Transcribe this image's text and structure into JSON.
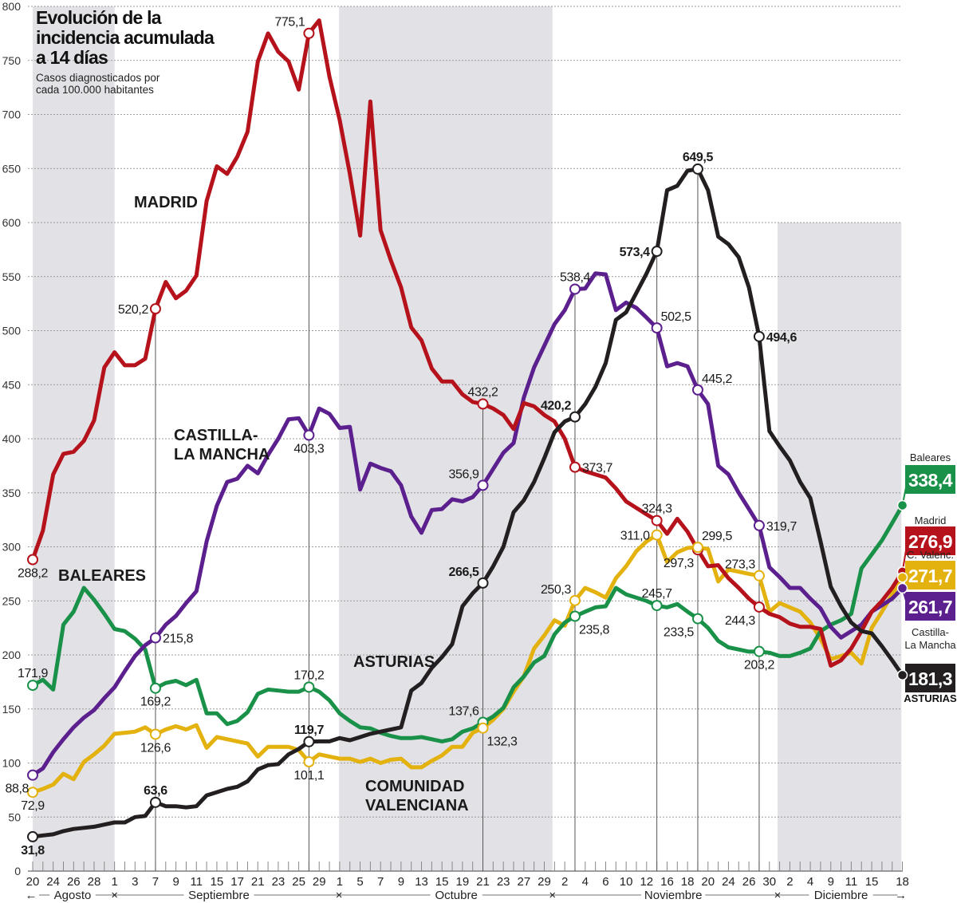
{
  "chart_data": {
    "type": "line",
    "title": [
      "Evolución de la",
      "incidencia acumulada",
      "a 14 días"
    ],
    "subtitle": [
      "Casos diagnosticados por",
      "cada 100.000 habitantes"
    ],
    "xlabel": "",
    "ylabel": "",
    "ylim": [
      0,
      800
    ],
    "yticks": [
      0,
      50,
      100,
      150,
      200,
      250,
      300,
      350,
      400,
      450,
      500,
      550,
      600,
      650,
      700,
      750,
      800
    ],
    "grid": true,
    "x_tick_labels": [
      "20",
      "24",
      "26",
      "28",
      "1",
      "3",
      "7",
      "9",
      "11",
      "15",
      "17",
      "21",
      "23",
      "25",
      "29",
      "1",
      "5",
      "7",
      "9",
      "13",
      "15",
      "19",
      "21",
      "23",
      "27",
      "29",
      "2",
      "4",
      "6",
      "10",
      "12",
      "16",
      "18",
      "20",
      "24",
      "26",
      "30",
      "2",
      "4",
      "9",
      "11",
      "15",
      "18"
    ],
    "months": [
      "Agosto",
      "Septiembre",
      "Octubre",
      "Noviembre",
      "Diciembre"
    ],
    "month_separator": "×",
    "arrow_left": "←",
    "arrow_right": "→",
    "shaded_months": [
      "Agosto",
      "Octubre",
      "Diciembre"
    ],
    "series": [
      {
        "key": "madrid",
        "name": "MADRID",
        "color": "#b5121b",
        "values": [
          288.2,
          315,
          367,
          386,
          388,
          398,
          417,
          466,
          480,
          468,
          468,
          474,
          520.2,
          545,
          530,
          537,
          551,
          620,
          652,
          645,
          661,
          684,
          749,
          775,
          758,
          749,
          723,
          775.1,
          787,
          735,
          695,
          645,
          588,
          712,
          593,
          565,
          540,
          503,
          491,
          465,
          453,
          453,
          441,
          434,
          432.2,
          428,
          422,
          409,
          433,
          430,
          422,
          416,
          400,
          373.7,
          370,
          367,
          364,
          354,
          342,
          336,
          330,
          324.3,
          312,
          326,
          314,
          297.3,
          282,
          283,
          271,
          262,
          252,
          244.3,
          238,
          235,
          229,
          226,
          226,
          224,
          190,
          195,
          206,
          222,
          240,
          250,
          262,
          276.9
        ]
      },
      {
        "key": "clm",
        "name": "CASTILLA-LA MANCHA",
        "color": "#5b1f8e",
        "values": [
          88.8,
          95,
          110,
          122,
          133,
          142,
          149,
          160,
          170,
          185,
          199,
          209,
          215.8,
          228,
          236,
          248,
          259,
          305,
          338,
          360,
          363,
          375,
          368,
          385,
          400,
          418,
          419,
          403.3,
          428,
          423,
          410,
          411,
          353,
          377,
          373,
          370,
          357,
          328,
          313,
          334,
          335,
          344,
          342,
          346,
          356.9,
          372,
          387,
          396,
          438,
          466,
          486,
          506,
          519,
          538.4,
          539,
          553,
          552,
          519,
          526,
          521,
          512,
          502.5,
          467,
          470,
          467,
          445.2,
          432,
          375,
          367,
          350,
          335,
          319.7,
          281,
          272,
          262,
          262,
          252,
          243,
          226,
          216,
          222,
          228,
          240,
          246,
          252,
          261.7
        ]
      },
      {
        "key": "asturias",
        "name": "ASTURIAS",
        "color": "#231f20",
        "values": [
          31.8,
          33,
          34,
          37,
          39,
          40,
          41,
          43,
          45,
          45,
          50,
          51,
          63.6,
          60,
          60,
          59,
          60,
          70,
          73,
          76,
          78,
          83,
          94,
          98,
          99,
          108,
          113,
          119.7,
          120,
          120,
          123,
          121,
          124,
          127,
          129,
          131,
          133,
          167,
          174,
          188,
          198,
          210,
          245,
          257,
          266.5,
          282,
          300,
          332,
          343,
          360,
          382,
          406,
          416,
          420.2,
          432,
          448,
          470,
          510,
          517,
          535,
          553,
          573.4,
          630,
          634,
          648,
          649.5,
          630,
          587,
          580,
          568,
          540,
          494.6,
          407,
          393,
          380,
          360,
          345,
          305,
          263,
          245,
          230,
          222,
          220,
          208,
          195,
          181.3
        ]
      },
      {
        "key": "baleares",
        "name": "BALEARES",
        "color": "#1a9148",
        "values": [
          171.9,
          177,
          168,
          228,
          240,
          262,
          251,
          238,
          224,
          222,
          215,
          205,
          169.2,
          174,
          176,
          172,
          177,
          146,
          146,
          136,
          139,
          147,
          164,
          168,
          167,
          166,
          166,
          170.2,
          166,
          158,
          146,
          139,
          133,
          132,
          128,
          125,
          123,
          123,
          124,
          122,
          120,
          122,
          129,
          132,
          137.6,
          143,
          151,
          170,
          180,
          193,
          199,
          219,
          230,
          235.8,
          240,
          244,
          245,
          262,
          256,
          253,
          250,
          245.7,
          244,
          247,
          240,
          233.5,
          225,
          213,
          207,
          205,
          203,
          203.2,
          202,
          199,
          199,
          202,
          206,
          222,
          228,
          232,
          238,
          280,
          293,
          306,
          322,
          338.4
        ]
      },
      {
        "key": "valenciana",
        "name": "COMUNIDAD VALENCIANA",
        "color": "#e3b20f",
        "values": [
          72.9,
          76,
          80,
          90,
          85,
          101,
          108,
          116,
          127,
          128,
          129,
          133,
          126.6,
          131,
          134,
          131,
          135,
          114,
          124,
          122,
          120,
          118,
          106,
          115,
          115,
          115,
          112,
          101.1,
          108,
          106,
          104,
          104,
          101,
          104,
          100,
          103,
          104,
          96,
          96,
          102,
          107,
          115,
          115,
          128,
          132.3,
          140,
          150,
          166,
          180,
          206,
          218,
          232,
          227,
          250.3,
          262,
          258,
          253,
          271,
          282,
          296,
          305,
          311.0,
          286,
          295,
          299,
          299.5,
          298,
          268,
          279,
          277,
          275,
          273.3,
          240,
          248,
          244,
          240,
          230,
          215,
          196,
          199,
          202,
          192,
          225,
          240,
          256,
          271.7
        ]
      }
    ],
    "series_labels": [
      {
        "series": "madrid",
        "lines": [
          "MADRID"
        ]
      },
      {
        "series": "clm",
        "lines": [
          "CASTILLA-",
          "LA MANCHA"
        ]
      },
      {
        "series": "baleares",
        "lines": [
          "BALEARES"
        ]
      },
      {
        "series": "asturias",
        "lines": [
          "ASTURIAS"
        ]
      },
      {
        "series": "valenciana",
        "lines": [
          "COMUNIDAD",
          "VALENCIANA"
        ]
      }
    ],
    "annotations": [
      {
        "series": "madrid",
        "index": 0,
        "label": "288,2",
        "placement": "below"
      },
      {
        "series": "madrid",
        "index": 12,
        "label": "520,2",
        "placement": "left"
      },
      {
        "series": "madrid",
        "index": 27,
        "label": "775,1",
        "placement": "above-left"
      },
      {
        "series": "madrid",
        "index": 44,
        "label": "432,2",
        "placement": "above"
      },
      {
        "series": "madrid",
        "index": 53,
        "label": "373,7",
        "placement": "right"
      },
      {
        "series": "madrid",
        "index": 61,
        "label": "324,3",
        "placement": "above"
      },
      {
        "series": "madrid",
        "index": 65,
        "label": "297,3",
        "placement": "below-left"
      },
      {
        "series": "madrid",
        "index": 71,
        "label": "244,3",
        "placement": "below-left"
      },
      {
        "series": "clm",
        "index": 0,
        "label": "88,8",
        "placement": "below-left"
      },
      {
        "series": "clm",
        "index": 12,
        "label": "215,8",
        "placement": "right"
      },
      {
        "series": "clm",
        "index": 27,
        "label": "403,3",
        "placement": "below"
      },
      {
        "series": "clm",
        "index": 44,
        "label": "356,9",
        "placement": "above-left"
      },
      {
        "series": "clm",
        "index": 53,
        "label": "538,4",
        "placement": "above"
      },
      {
        "series": "clm",
        "index": 61,
        "label": "502,5",
        "placement": "above-right"
      },
      {
        "series": "clm",
        "index": 65,
        "label": "445,2",
        "placement": "above-right"
      },
      {
        "series": "clm",
        "index": 71,
        "label": "319,7",
        "placement": "right"
      },
      {
        "series": "asturias",
        "index": 0,
        "label": "31,8",
        "placement": "below"
      },
      {
        "series": "asturias",
        "index": 12,
        "label": "63,6",
        "placement": "above"
      },
      {
        "series": "asturias",
        "index": 27,
        "label": "119,7",
        "placement": "above"
      },
      {
        "series": "asturias",
        "index": 44,
        "label": "266,5",
        "placement": "above-left"
      },
      {
        "series": "asturias",
        "index": 53,
        "label": "420,2",
        "placement": "above-left"
      },
      {
        "series": "asturias",
        "index": 61,
        "label": "573,4",
        "placement": "left"
      },
      {
        "series": "asturias",
        "index": 65,
        "label": "649,5",
        "placement": "above"
      },
      {
        "series": "asturias",
        "index": 71,
        "label": "494,6",
        "placement": "right"
      },
      {
        "series": "baleares",
        "index": 0,
        "label": "171,9",
        "placement": "above"
      },
      {
        "series": "baleares",
        "index": 12,
        "label": "169,2",
        "placement": "below"
      },
      {
        "series": "baleares",
        "index": 27,
        "label": "170,2",
        "placement": "above"
      },
      {
        "series": "baleares",
        "index": 44,
        "label": "137,6",
        "placement": "above-left"
      },
      {
        "series": "baleares",
        "index": 53,
        "label": "235,8",
        "placement": "below-right"
      },
      {
        "series": "baleares",
        "index": 61,
        "label": "245,7",
        "placement": "above"
      },
      {
        "series": "baleares",
        "index": 65,
        "label": "233,5",
        "placement": "below-left"
      },
      {
        "series": "baleares",
        "index": 71,
        "label": "203,2",
        "placement": "below"
      },
      {
        "series": "valenciana",
        "index": 0,
        "label": "72,9",
        "placement": "below"
      },
      {
        "series": "valenciana",
        "index": 12,
        "label": "126,6",
        "placement": "below"
      },
      {
        "series": "valenciana",
        "index": 27,
        "label": "101,1",
        "placement": "below"
      },
      {
        "series": "valenciana",
        "index": 44,
        "label": "132,3",
        "placement": "below-right"
      },
      {
        "series": "valenciana",
        "index": 53,
        "label": "250,3",
        "placement": "above-left"
      },
      {
        "series": "valenciana",
        "index": 61,
        "label": "311,0",
        "placement": "left"
      },
      {
        "series": "valenciana",
        "index": 65,
        "label": "299,5",
        "placement": "above-right"
      },
      {
        "series": "valenciana",
        "index": 71,
        "label": "273,3",
        "placement": "above-left"
      }
    ],
    "end_labels": [
      {
        "series": "baleares",
        "value": "338,4",
        "name": [
          "Baleares"
        ]
      },
      {
        "series": "madrid",
        "value": "276,9",
        "name": [
          "Madrid"
        ]
      },
      {
        "series": "valenciana",
        "value": "271,7",
        "name": [
          "C. Valenc."
        ]
      },
      {
        "series": "clm",
        "value": "261,7",
        "name": [
          "Castilla-",
          "La Mancha"
        ]
      },
      {
        "series": "asturias",
        "value": "181,3",
        "name": [
          "ASTURIAS"
        ]
      }
    ]
  }
}
